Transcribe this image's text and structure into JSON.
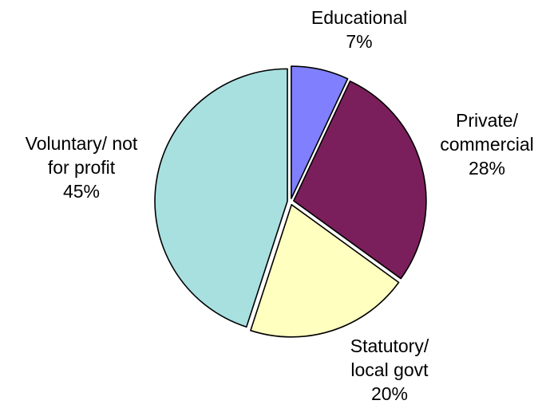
{
  "chart_data": {
    "type": "pie",
    "title": "",
    "slices": [
      {
        "lines": [
          "Educational"
        ],
        "percent_label": "7%",
        "value": 7,
        "color": "#8080FF"
      },
      {
        "lines": [
          "Private/",
          "commercial"
        ],
        "percent_label": "28%",
        "value": 28,
        "color": "#7B1F5C"
      },
      {
        "lines": [
          "Statutory/",
          "local govt"
        ],
        "percent_label": "20%",
        "value": 20,
        "color": "#FFFFC0"
      },
      {
        "lines": [
          "Voluntary/ not",
          "for profit"
        ],
        "percent_label": "45%",
        "value": 45,
        "color": "#A8E0E0"
      }
    ],
    "start_angle_deg": 0,
    "direction": "clockwise",
    "exploded": true,
    "legend": "none"
  }
}
